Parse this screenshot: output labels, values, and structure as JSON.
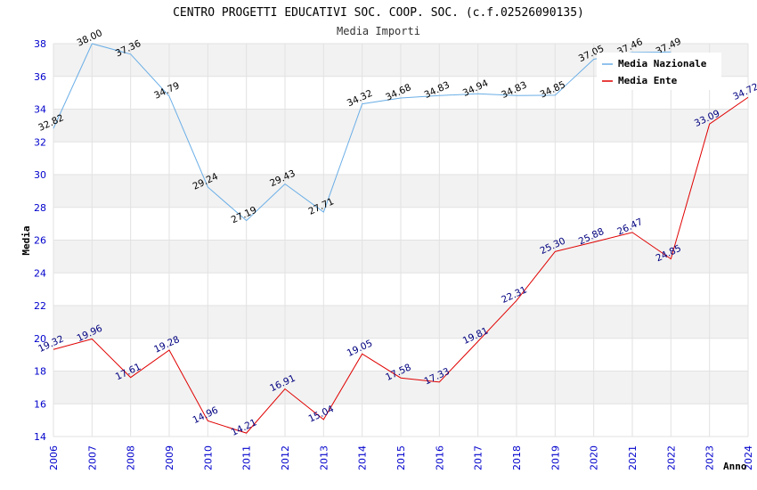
{
  "chart_data": {
    "type": "line",
    "title": "CENTRO PROGETTI EDUCATIVI SOC. COOP. SOC. (c.f.02526090135)",
    "subtitle": "Media Importi",
    "xlabel": "Anno",
    "ylabel": "Media",
    "x": [
      "2006",
      "2007",
      "2008",
      "2009",
      "2010",
      "2011",
      "2012",
      "2013",
      "2014",
      "2015",
      "2016",
      "2017",
      "2018",
      "2019",
      "2020",
      "2021",
      "2022",
      "2023",
      "2024"
    ],
    "yticks": [
      "14",
      "16",
      "18",
      "20",
      "22",
      "24",
      "26",
      "28",
      "30",
      "32",
      "34",
      "36",
      "38"
    ],
    "ylim": [
      14,
      38
    ],
    "grid": true,
    "legend_position": "top-right",
    "series": [
      {
        "name": "Media Nazionale",
        "color": "#6aaee6",
        "label_color": "#000000",
        "values": [
          32.82,
          38.0,
          37.36,
          34.79,
          29.24,
          27.19,
          29.43,
          27.71,
          34.32,
          34.68,
          34.83,
          34.94,
          34.83,
          34.85,
          37.05,
          37.46,
          37.49,
          null,
          null
        ],
        "labels": [
          "32.82",
          "38.00",
          "37.36",
          "34.79",
          "29.24",
          "27.19",
          "29.43",
          "27.71",
          "34.32",
          "34.68",
          "34.83",
          "34.94",
          "34.83",
          "34.85",
          "37.05",
          "37.46",
          "37.49",
          "",
          ""
        ]
      },
      {
        "name": "Media Ente",
        "color": "#e00000",
        "label_color": "#000080",
        "values": [
          19.32,
          19.96,
          17.61,
          19.28,
          14.96,
          14.21,
          16.91,
          15.04,
          19.05,
          17.58,
          17.33,
          19.81,
          22.31,
          25.3,
          25.88,
          26.47,
          24.85,
          33.09,
          34.72
        ],
        "labels": [
          "19.32",
          "19.96",
          "17.61",
          "19.28",
          "14.96",
          "14.21",
          "16.91",
          "15.04",
          "19.05",
          "17.58",
          "17.33",
          "19.81",
          "22.31",
          "25.30",
          "25.88",
          "26.47",
          "24.85",
          "33.09",
          "34.72"
        ]
      }
    ]
  }
}
